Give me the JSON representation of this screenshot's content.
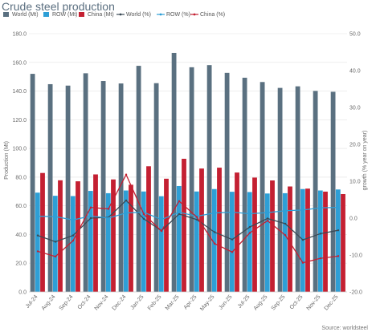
{
  "chart_data": {
    "type": "bar",
    "title": "Crude steel production",
    "ylabel": "Production (Mt)",
    "y2label": "growth (% year on year)",
    "source": "Source: worldsteel",
    "ylim": [
      0,
      180
    ],
    "y2lim": [
      -20,
      50
    ],
    "yticks": [
      "0.0",
      "20.0",
      "40.0",
      "60.0",
      "80.0",
      "100.0",
      "120.0",
      "140.0",
      "160.0",
      "180.0"
    ],
    "y2ticks": [
      "-20.0",
      "-10.0",
      "0.0",
      "10.0",
      "20.0",
      "30.0",
      "40.0",
      "50.0"
    ],
    "grid": true,
    "legend_position": "top",
    "categories": [
      "Jul-24",
      "Aug-24",
      "Sep-24",
      "Oct-24",
      "Nov-24",
      "Dec-24",
      "Jan-25",
      "Feb-25",
      "Mar-25",
      "Apr-25",
      "May-25",
      "Jun-25",
      "Jul-25",
      "Aug-25",
      "Sep-25",
      "Oct-25",
      "Nov-25",
      "Dec-25"
    ],
    "series": [
      {
        "name": "World (Mt)",
        "kind": "bar",
        "axis": "left",
        "color": "#5a7080",
        "values": [
          152.0,
          144.8,
          143.8,
          152.4,
          147.0,
          145.3,
          157.6,
          145.5,
          166.6,
          156.6,
          158.1,
          152.7,
          149.3,
          146.3,
          142.2,
          143.3,
          140.1,
          139.5
        ]
      },
      {
        "name": "ROW (Mt)",
        "kind": "bar",
        "axis": "left",
        "color": "#2e9fd6",
        "values": [
          69.2,
          67.0,
          66.8,
          70.4,
          68.8,
          70.7,
          70.0,
          66.7,
          73.8,
          70.0,
          71.7,
          69.8,
          69.6,
          68.6,
          68.8,
          71.7,
          70.7,
          71.4
        ]
      },
      {
        "name": "China (Mt)",
        "kind": "bar",
        "axis": "left",
        "color": "#c42032",
        "values": [
          82.9,
          77.8,
          77.1,
          81.9,
          78.4,
          74.7,
          87.6,
          78.9,
          92.8,
          86.0,
          86.6,
          83.2,
          79.7,
          77.7,
          73.5,
          72.0,
          69.9,
          68.2
        ]
      },
      {
        "name": "World (%)",
        "kind": "line",
        "axis": "right",
        "color": "#3b4a55",
        "values": [
          -4.7,
          -6.4,
          -4.7,
          0.0,
          0.2,
          4.8,
          -0.2,
          -3.4,
          1.1,
          -0.4,
          -3.8,
          -5.8,
          -2.4,
          -0.1,
          -1.5,
          -5.9,
          -4.2,
          -3.3
        ]
      },
      {
        "name": "ROW (%)",
        "kind": "line",
        "axis": "right",
        "color": "#2e9fd6",
        "values": [
          0.5,
          0.4,
          -0.5,
          0.6,
          0.0,
          1.4,
          1.6,
          -0.4,
          1.6,
          0.5,
          1.4,
          1.6,
          1.2,
          1.5,
          2.0,
          2.2,
          2.8,
          2.9
        ]
      },
      {
        "name": "China (%)",
        "kind": "line",
        "axis": "right",
        "color": "#c42032",
        "values": [
          -9.0,
          -10.4,
          -6.1,
          2.9,
          2.5,
          11.8,
          1.1,
          -3.5,
          4.6,
          0.3,
          -6.9,
          -9.2,
          -4.0,
          -0.7,
          -4.6,
          -12.1,
          -10.9,
          -10.3
        ]
      }
    ]
  }
}
